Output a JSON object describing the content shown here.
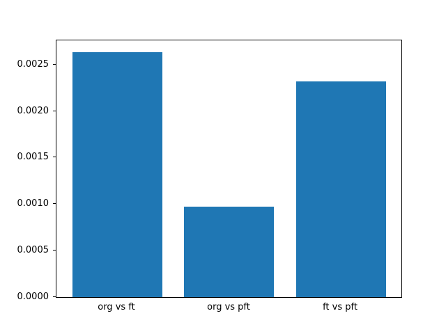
{
  "chart_data": {
    "type": "bar",
    "title": "",
    "categories": [
      "org vs ft",
      "org vs pft",
      "ft vs pft"
    ],
    "values": [
      0.00263,
      0.00097,
      0.00232
    ],
    "xlabel": "",
    "ylabel": "",
    "ylim": [
      0,
      0.00276
    ],
    "yticks": [
      0.0,
      0.0005,
      0.001,
      0.0015,
      0.002,
      0.0025
    ],
    "ytick_labels": [
      "0.0000",
      "0.0005",
      "0.0010",
      "0.0015",
      "0.0020",
      "0.0025"
    ],
    "bar_color": "#1f77b4",
    "axis_color": "#000000",
    "background": "#ffffff",
    "grid": false,
    "legend_position": "none"
  }
}
